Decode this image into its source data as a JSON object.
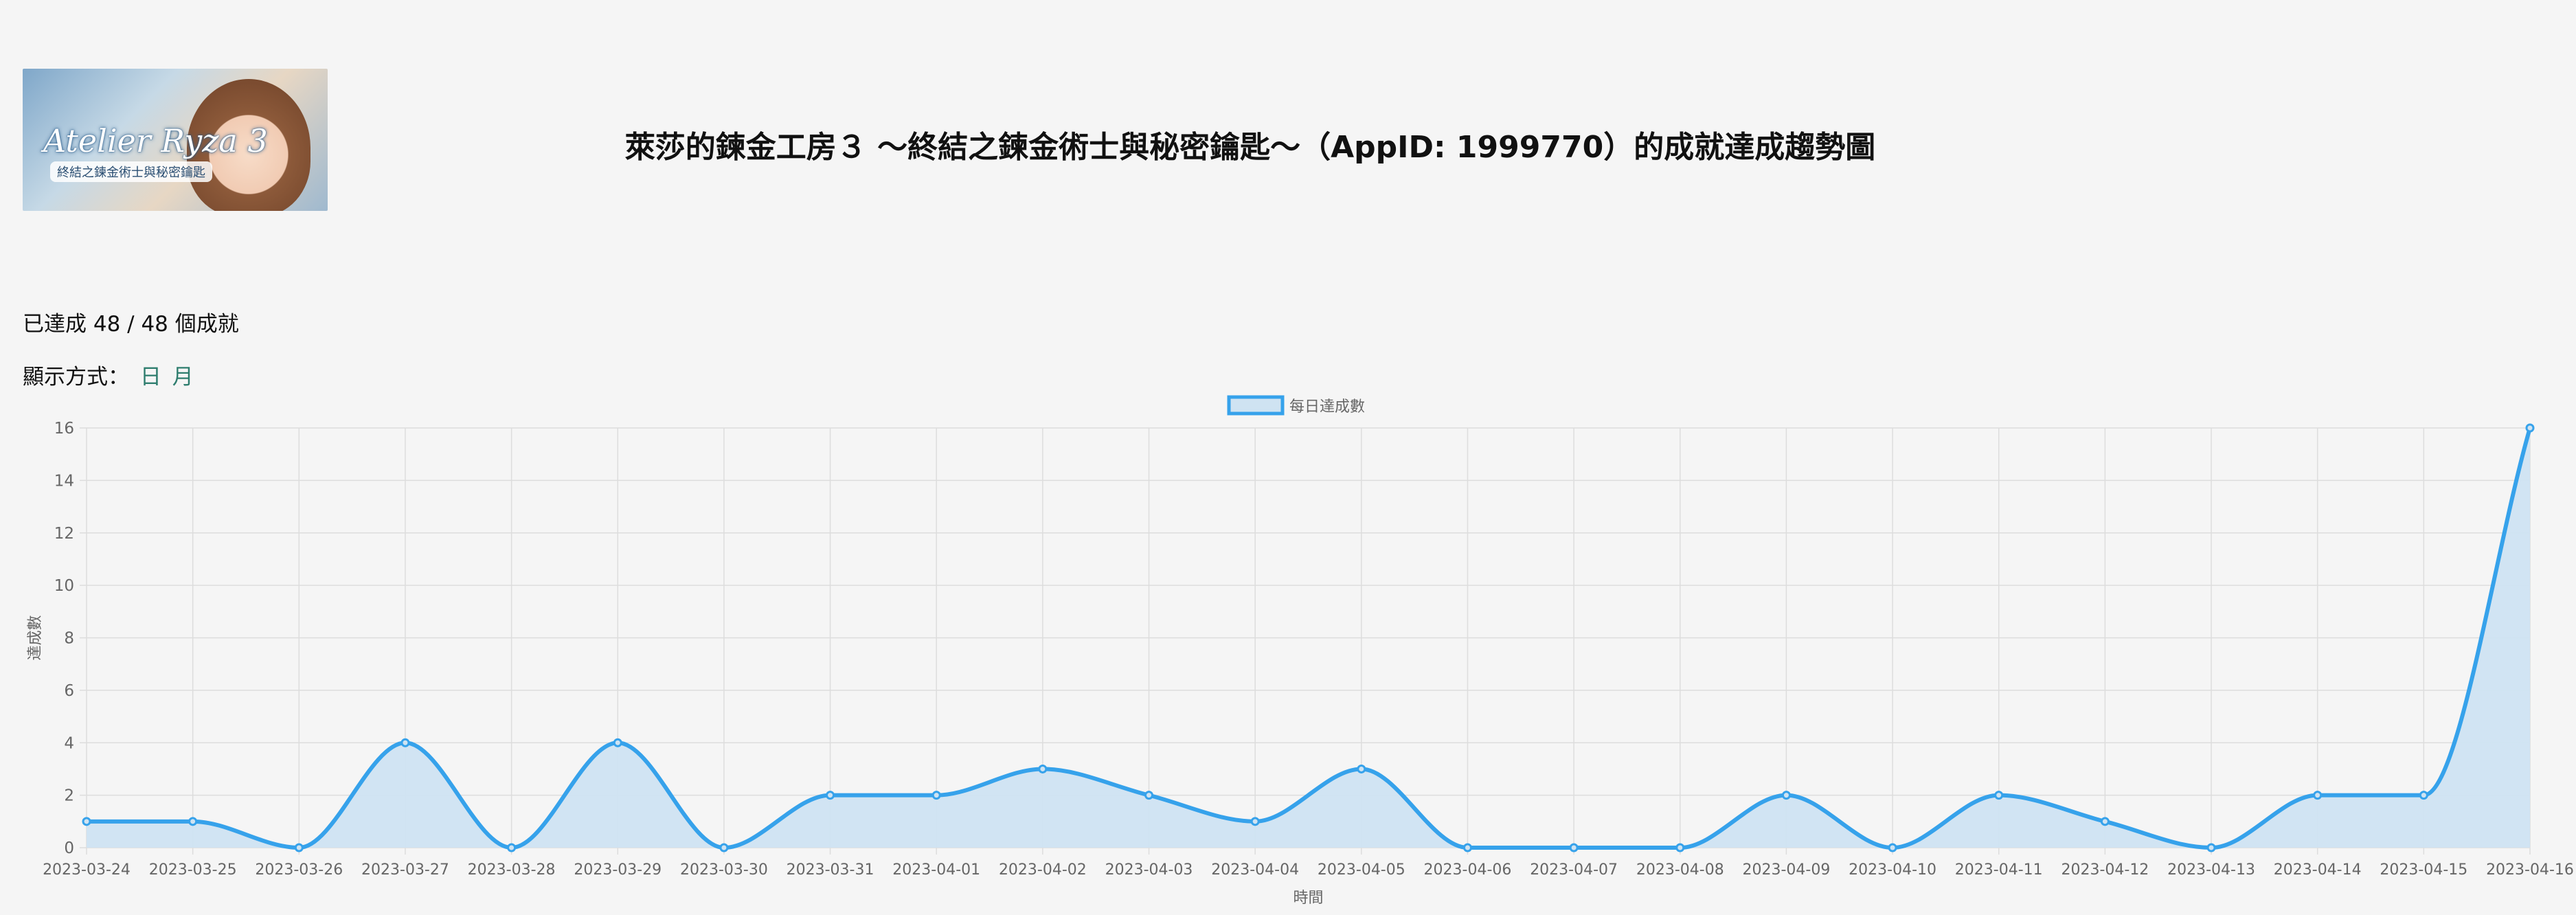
{
  "header": {
    "banner_title": "Atelier Ryza 3",
    "banner_subtitle": "終結之鍊金術士與秘密鑰匙",
    "title": "萊莎的鍊金工房３ ～終結之鍊金術士與秘密鑰匙～（AppID: 1999770）的成就達成趨勢圖"
  },
  "summary": {
    "text": "已達成 48 / 48 個成就"
  },
  "display_mode": {
    "label": "顯示方式：",
    "options": [
      "日",
      "月"
    ]
  },
  "colors": {
    "line": "#36a2eb",
    "fill": "#cfe3f2",
    "grid": "#dddddd",
    "text": "#666666"
  },
  "chart_data": {
    "type": "area",
    "legend": "每日達成數",
    "legend_position": "top",
    "xlabel": "時間",
    "ylabel": "達成數",
    "ylim": [
      0,
      16
    ],
    "yticks": [
      0,
      2,
      4,
      6,
      8,
      10,
      12,
      14,
      16
    ],
    "grid": true,
    "categories": [
      "2023-03-24",
      "2023-03-25",
      "2023-03-26",
      "2023-03-27",
      "2023-03-28",
      "2023-03-29",
      "2023-03-30",
      "2023-03-31",
      "2023-04-01",
      "2023-04-02",
      "2023-04-03",
      "2023-04-04",
      "2023-04-05",
      "2023-04-06",
      "2023-04-07",
      "2023-04-08",
      "2023-04-09",
      "2023-04-10",
      "2023-04-11",
      "2023-04-12",
      "2023-04-13",
      "2023-04-14",
      "2023-04-15",
      "2023-04-16"
    ],
    "series": [
      {
        "name": "每日達成數",
        "values": [
          1,
          1,
          0,
          4,
          0,
          4,
          0,
          2,
          2,
          3,
          2,
          1,
          3,
          0,
          0,
          0,
          2,
          0,
          2,
          1,
          0,
          2,
          2,
          16
        ]
      }
    ]
  }
}
